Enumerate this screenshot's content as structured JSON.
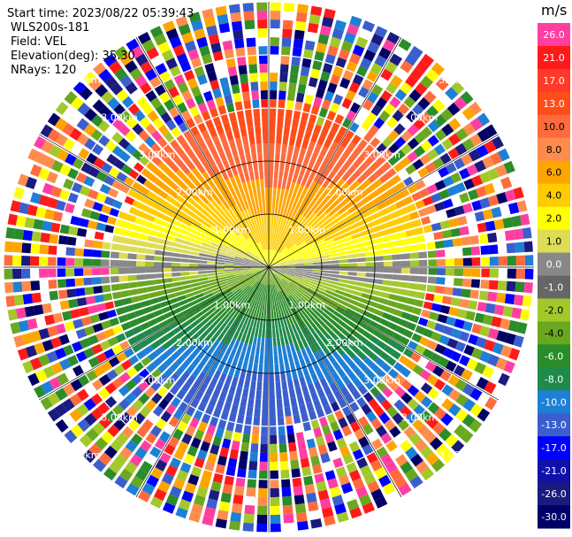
{
  "info": {
    "start_time": "Start time: 2023/08/22 05:39:43",
    "station": "WLS200s-181",
    "field": "Field: VEL",
    "elevation": "Elevation(deg): 35.30",
    "nrays": "NRays: 120"
  },
  "chart_data": {
    "type": "ppi",
    "field": "VEL",
    "nrays": 120,
    "elevation_deg": 35.3,
    "colorbar": {
      "unit": "m/s",
      "ticks": [
        "26.0",
        "21.0",
        "17.0",
        "13.0",
        "10.0",
        "8.0",
        "6.0",
        "4.0",
        "2.0",
        "1.0",
        "0.0",
        "-1.0",
        "-2.0",
        "-4.0",
        "-6.0",
        "-8.0",
        "-10.0",
        "-13.0",
        "-17.0",
        "-21.0",
        "-26.0",
        "-30.0"
      ],
      "colors": [
        "#ff3ea2",
        "#ff1a1a",
        "#ff3a2a",
        "#ff4d1a",
        "#ff6b3d",
        "#ff8c4d",
        "#ffa500",
        "#ffcc00",
        "#ffff00",
        "#dddd55",
        "#888888",
        "#666666",
        "#a3c82b",
        "#6aa820",
        "#2a8c2a",
        "#1f8a4a",
        "#1e7fd6",
        "#3a5fcd",
        "#0000ff",
        "#1010aa",
        "#1a1a80",
        "#000066"
      ]
    },
    "ring_labels": {
      "inner": "1.00km",
      "middle": "2.00km",
      "outer": "3.00km"
    },
    "note": "Radial velocity PPI scan; upper half shows positive (red/orange/yellow) velocities, lower half negative (green/blue)."
  }
}
